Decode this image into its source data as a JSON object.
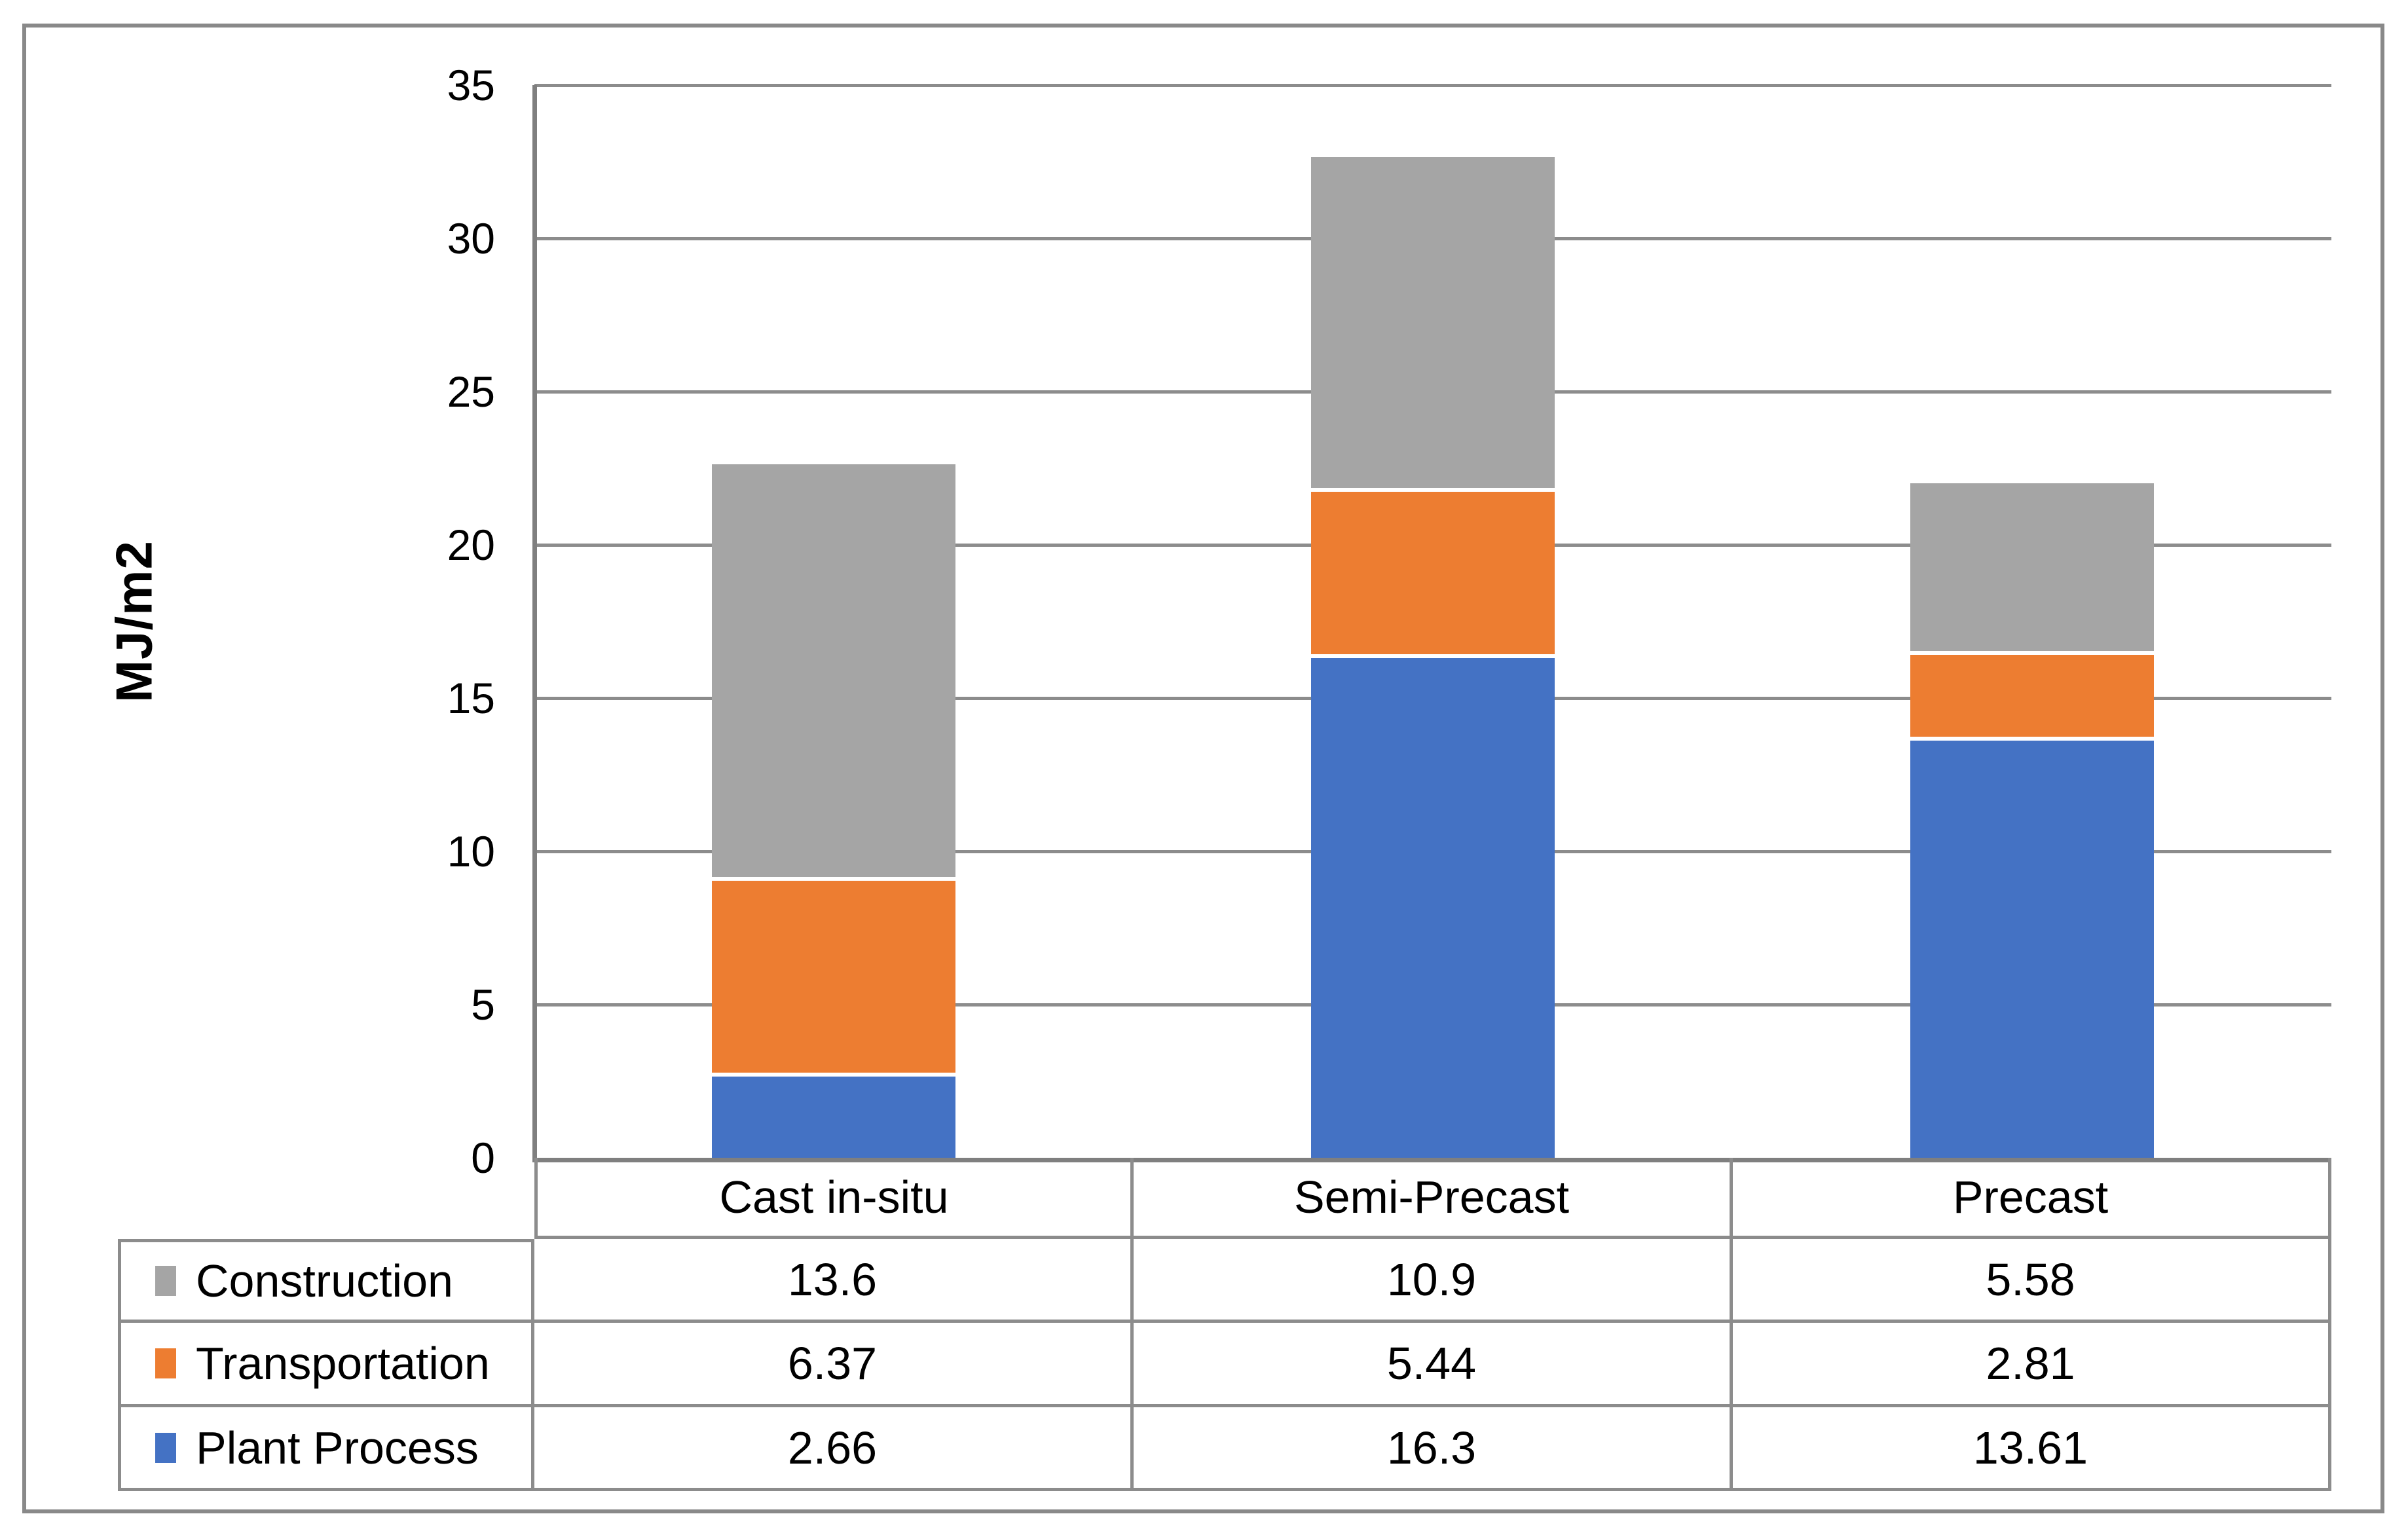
{
  "chart_data": {
    "type": "bar",
    "stacked": true,
    "title": "",
    "ylabel": "MJ/m2",
    "xlabel": "",
    "categories": [
      "Cast in-situ",
      "Semi-Precast",
      "Precast"
    ],
    "series": [
      {
        "name": "Construction",
        "color": "#A5A5A5",
        "values": [
          13.6,
          10.9,
          5.58
        ],
        "values_text": [
          "13.6",
          "10.9",
          "5.58"
        ]
      },
      {
        "name": "Transportation",
        "color": "#ED7D31",
        "values": [
          6.37,
          5.44,
          2.81
        ],
        "values_text": [
          "6.37",
          "5.44",
          "2.81"
        ]
      },
      {
        "name": "Plant Process",
        "color": "#4472C4",
        "values": [
          2.66,
          16.3,
          13.61
        ],
        "values_text": [
          "2.66",
          "16.3",
          "13.61"
        ]
      }
    ],
    "stack_order_bottom_to_top": [
      "Plant Process",
      "Transportation",
      "Construction"
    ],
    "ylim": [
      0,
      35
    ],
    "yticks": [
      0,
      5,
      10,
      15,
      20,
      25,
      30,
      35
    ],
    "grid": true,
    "legend_position": "data-table-left-column"
  },
  "colors": {
    "plant_process": "#4472C4",
    "transportation": "#ED7D31",
    "construction": "#A5A5A5",
    "gridline": "#8C8C8C",
    "axis_line": "#7F7F7F",
    "table_border": "#8C8C8C",
    "figure_border": "#898989",
    "background": "#ffffff",
    "text": "#000000"
  }
}
